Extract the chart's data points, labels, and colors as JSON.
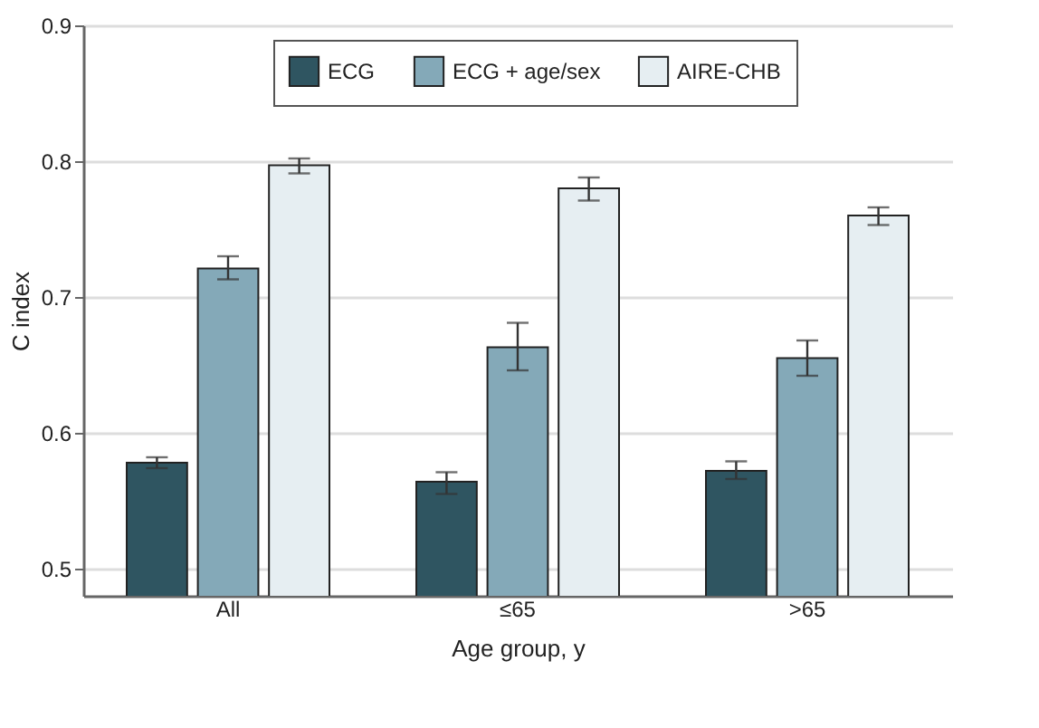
{
  "chart_data": {
    "type": "bar",
    "xlabel": "Age group, y",
    "ylabel": "C index",
    "categories": [
      "All",
      "≤65",
      ">65"
    ],
    "series": [
      {
        "name": "ECG",
        "color": "#2f5561",
        "values": [
          0.578,
          0.564,
          0.572
        ],
        "errors": [
          [
            0.574,
            0.582
          ],
          [
            0.555,
            0.571
          ],
          [
            0.566,
            0.579
          ]
        ]
      },
      {
        "name": "ECG + age/sex",
        "color": "#84a9b8",
        "values": [
          0.721,
          0.663,
          0.655
        ],
        "errors": [
          [
            0.713,
            0.73
          ],
          [
            0.646,
            0.681
          ],
          [
            0.642,
            0.668
          ]
        ]
      },
      {
        "name": "AIRE-CHB",
        "color": "#e6eef2",
        "values": [
          0.797,
          0.78,
          0.76
        ],
        "errors": [
          [
            0.791,
            0.802
          ],
          [
            0.771,
            0.788
          ],
          [
            0.753,
            0.766
          ]
        ]
      }
    ],
    "ylim": [
      0.48,
      0.9
    ],
    "yticks": [
      0.5,
      0.6,
      0.7,
      0.8,
      0.9
    ],
    "grid": "y",
    "legend": "top"
  }
}
